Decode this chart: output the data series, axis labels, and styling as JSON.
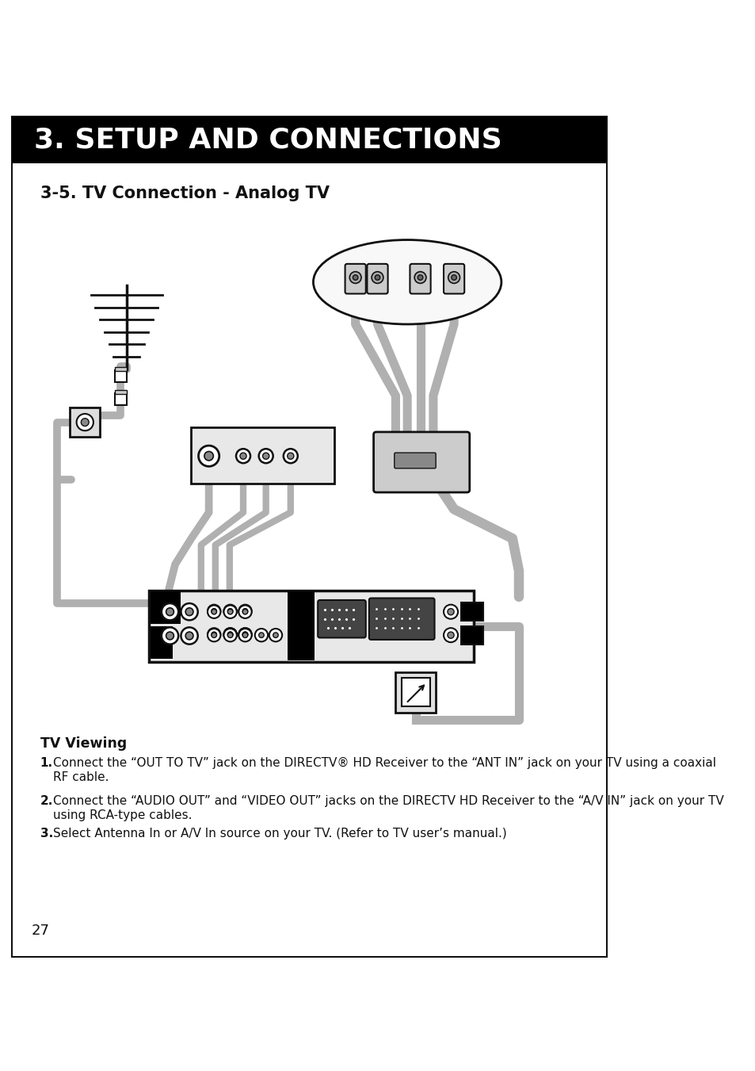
{
  "title_bar_text": "3. SETUP AND CONNECTIONS",
  "subtitle_text": "3-5. TV Connection - Analog TV",
  "section_heading": "TV Viewing",
  "body_line1_num": "1.",
  "body_line1": "Connect the “OUT TO TV” jack on the DIRECTV® HD Receiver to the “ANT IN” jack on your TV using a coaxial",
  "body_line1b": "RF cable.",
  "body_line2_num": "2.",
  "body_line2": "Connect the “AUDIO OUT” and “VIDEO OUT” jacks on the DIRECTV HD Receiver to the “A/V IN” jack on your TV",
  "body_line2b": "using RCA-type cables.",
  "body_line3_num": "3.",
  "body_line3": "Select Antenna In or A/V In source on your TV. (Refer to TV user’s manual.)",
  "page_number": "27",
  "bg_color": "#ffffff",
  "title_bar_color": "#000000",
  "title_text_color": "#ffffff",
  "border_color": "#000000",
  "cable_color": "#b0b0b0",
  "dark_color": "#111111",
  "gray_light": "#e8e8e8",
  "gray_mid": "#cccccc",
  "gray_dark": "#888888"
}
